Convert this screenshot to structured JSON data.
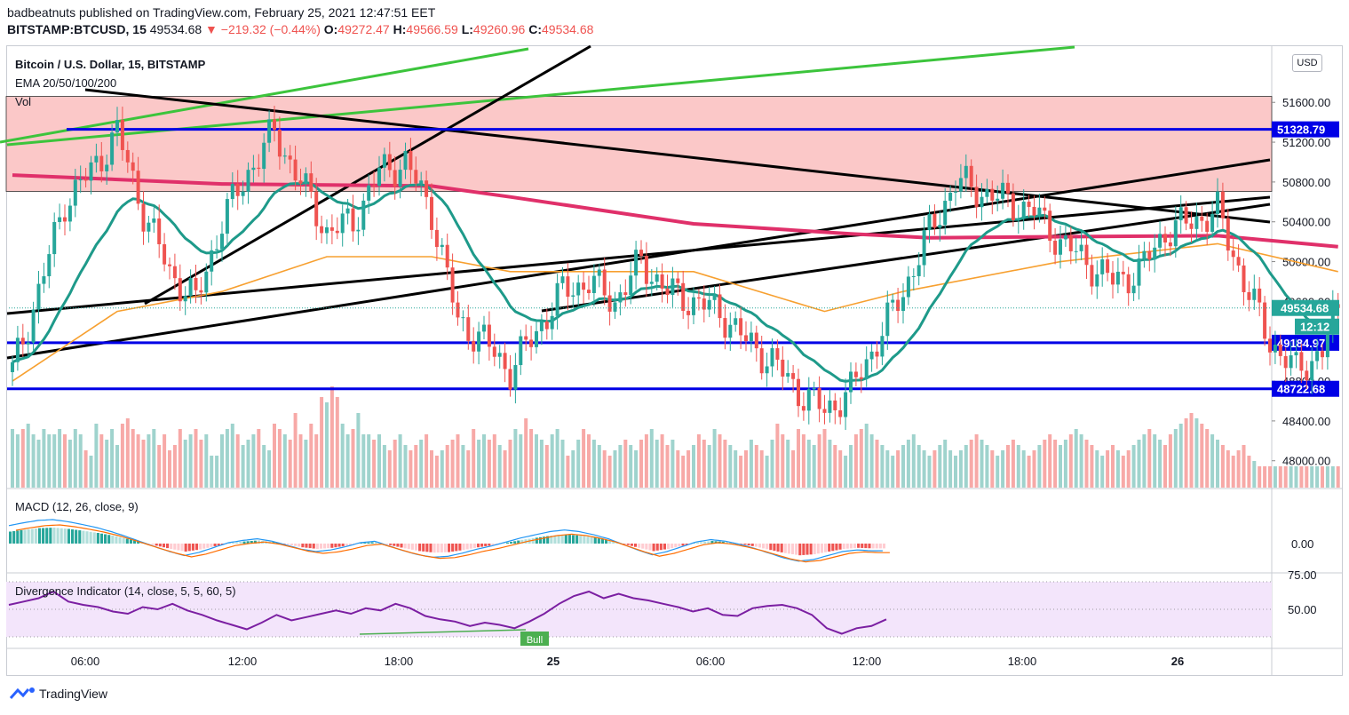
{
  "header": {
    "publisher_line": "badbeatnuts published on TradingView.com, February 25, 2021 12:47:51 EET",
    "symbol": "BITSTAMP:BTCUSD, 15",
    "last": "49534.68",
    "change": "▼ −219.32 (−0.44%)",
    "o_label": "O:",
    "o_val": "49272.47",
    "h_label": "H:",
    "h_val": "49566.59",
    "l_label": "L:",
    "l_val": "49260.96",
    "c_label": "C:",
    "c_val": "49534.68"
  },
  "legend": {
    "title": "Bitcoin / U.S. Dollar, 15, BITSTAMP",
    "ema": "EMA 20/50/100/200",
    "vol": "Vol",
    "macd": "MACD (12, 26, close, 9)",
    "div": "Divergence Indicator (14, close, 5, 5, 60, 5)",
    "currency": "USD"
  },
  "brand": "TradingView",
  "colors": {
    "up": "#26a69a",
    "down": "#ef5350",
    "volUp": "#9fd3cd",
    "volDown": "#f7a9a7",
    "ema20": "#1e9a8a",
    "ema50": "#f7a030",
    "ema200": "#e0306a",
    "zone": "#fbc8c8",
    "hline": "#0000e6",
    "trend": "#000000",
    "green": "#3cc43c",
    "rsi": "#7b1fa2",
    "rsiBg": "#f3e5fb",
    "macd": "#2196f3",
    "signal": "#ff6d00"
  },
  "chart_data": [
    {
      "type": "candlestick",
      "title": "Bitcoin / U.S. Dollar, 15, BITSTAMP",
      "interval_minutes": 15,
      "y_ticks": [
        48000,
        48400,
        48800,
        49200,
        49600,
        50000,
        50400,
        50800,
        51200,
        51600
      ],
      "y_tick_labels": [
        "48000.00",
        "48400.00",
        "48800.00",
        "49200.00",
        "49600.00",
        "50000.00",
        "50400.00",
        "50800.00",
        "51200.00",
        "51600.00"
      ],
      "ylim": [
        47730,
        51950
      ],
      "x_tick_labels": [
        "06:00",
        "12:00",
        "18:00",
        "25",
        "06:00",
        "12:00",
        "18:00",
        "26"
      ],
      "resistance_zone": [
        50705,
        51660
      ],
      "horizontal_levels": [
        51328.79,
        49184.97,
        48722.68
      ],
      "horizontal_level_labels": [
        "51328.79",
        "49184.97",
        "48722.68"
      ],
      "last_price_label": "49534.68",
      "countdown_label": "12:12",
      "close_path": [
        [
          0,
          48900
        ],
        [
          5,
          49700
        ],
        [
          10,
          50600
        ],
        [
          15,
          50900
        ],
        [
          20,
          51300
        ],
        [
          25,
          50500
        ],
        [
          30,
          49900
        ],
        [
          35,
          49600
        ],
        [
          40,
          50400
        ],
        [
          45,
          50900
        ],
        [
          50,
          51300
        ],
        [
          55,
          50800
        ],
        [
          60,
          50300
        ],
        [
          65,
          50400
        ],
        [
          70,
          50900
        ],
        [
          75,
          51000
        ],
        [
          80,
          50500
        ],
        [
          85,
          49400
        ],
        [
          90,
          49200
        ],
        [
          95,
          48900
        ],
        [
          100,
          49300
        ],
        [
          105,
          49700
        ],
        [
          110,
          49800
        ],
        [
          115,
          49600
        ],
        [
          120,
          50000
        ],
        [
          125,
          49700
        ],
        [
          130,
          49600
        ],
        [
          135,
          49500
        ],
        [
          140,
          49200
        ],
        [
          145,
          49000
        ],
        [
          150,
          48700
        ],
        [
          155,
          48500
        ],
        [
          160,
          48700
        ],
        [
          165,
          49200
        ],
        [
          170,
          49700
        ],
        [
          175,
          50300
        ],
        [
          180,
          50800
        ],
        [
          185,
          50700
        ],
        [
          190,
          50600
        ],
        [
          195,
          50500
        ],
        [
          200,
          50200
        ],
        [
          205,
          50000
        ],
        [
          210,
          49800
        ],
        [
          215,
          49900
        ],
        [
          220,
          50300
        ],
        [
          225,
          50400
        ],
        [
          230,
          50500
        ],
        [
          235,
          49800
        ],
        [
          240,
          49200
        ],
        [
          245,
          48900
        ],
        [
          250,
          49100
        ],
        [
          253,
          49534.68
        ]
      ],
      "ema200_path": [
        [
          0,
          50870
        ],
        [
          40,
          50780
        ],
        [
          80,
          50760
        ],
        [
          95,
          50650
        ],
        [
          130,
          50380
        ],
        [
          160,
          50280
        ],
        [
          175,
          50240
        ],
        [
          200,
          50250
        ],
        [
          230,
          50260
        ],
        [
          253,
          50150
        ]
      ],
      "ema50_path": [
        [
          0,
          48800
        ],
        [
          20,
          49500
        ],
        [
          40,
          49700
        ],
        [
          60,
          50050
        ],
        [
          80,
          50050
        ],
        [
          95,
          49900
        ],
        [
          130,
          49900
        ],
        [
          155,
          49500
        ],
        [
          170,
          49700
        ],
        [
          200,
          50000
        ],
        [
          230,
          50180
        ],
        [
          253,
          49900
        ]
      ]
    },
    {
      "type": "bar",
      "title": "Vol",
      "series": [
        {
          "values": [
            0.55,
            0.5,
            0.55,
            0.6,
            0.5,
            0.45,
            0.55,
            0.5,
            0.5,
            0.55,
            0.5,
            0.45,
            0.55,
            0.5,
            0.35,
            0.3,
            0.6,
            0.5,
            0.45,
            0.55,
            0.4,
            0.6,
            0.65,
            0.55,
            0.5,
            0.45,
            0.5,
            0.55,
            0.4,
            0.5,
            0.35,
            0.4,
            0.55,
            0.45,
            0.5,
            0.55,
            0.45,
            0.5,
            0.3,
            0.3,
            0.5,
            0.55,
            0.6,
            0.5,
            0.4,
            0.45,
            0.5,
            0.55,
            0.4,
            0.35,
            0.6,
            0.55,
            0.5,
            0.45,
            0.7,
            0.5,
            0.45,
            0.6,
            0.5,
            0.85,
            0.8,
            0.95,
            0.85,
            0.6,
            0.5,
            0.55,
            0.7,
            0.5,
            0.5,
            0.45,
            0.5,
            0.4,
            0.35,
            0.45,
            0.5,
            0.4,
            0.35,
            0.4,
            0.45,
            0.5,
            0.35,
            0.3,
            0.35,
            0.4,
            0.45,
            0.5,
            0.4,
            0.35,
            0.55,
            0.45,
            0.5,
            0.45,
            0.5,
            0.4,
            0.35,
            0.45,
            0.55,
            0.5,
            0.65,
            0.55,
            0.5,
            0.45,
            0.4,
            0.5,
            0.55,
            0.45,
            0.3,
            0.35,
            0.45,
            0.55,
            0.5,
            0.45,
            0.4,
            0.35,
            0.3,
            0.35,
            0.4,
            0.45,
            0.4,
            0.35,
            0.45,
            0.5,
            0.55,
            0.45,
            0.5,
            0.4,
            0.45,
            0.35,
            0.3,
            0.35,
            0.4,
            0.5,
            0.45,
            0.4,
            0.55,
            0.5,
            0.45,
            0.4,
            0.35,
            0.3,
            0.35,
            0.45,
            0.4,
            0.35,
            0.3,
            0.45,
            0.6,
            0.5,
            0.45,
            0.35,
            0.55,
            0.5,
            0.45,
            0.4,
            0.5,
            0.55,
            0.45,
            0.4,
            0.35,
            0.3,
            0.4,
            0.5,
            0.55,
            0.6,
            0.5,
            0.45,
            0.4,
            0.35,
            0.3,
            0.35,
            0.4,
            0.45,
            0.5,
            0.4,
            0.35,
            0.3,
            0.35,
            0.4,
            0.45,
            0.35,
            0.3,
            0.35,
            0.4,
            0.45,
            0.5,
            0.45,
            0.4,
            0.35,
            0.3,
            0.35,
            0.4,
            0.45,
            0.4,
            0.35,
            0.3,
            0.35,
            0.4,
            0.45,
            0.5,
            0.45,
            0.4,
            0.45,
            0.5,
            0.55,
            0.5,
            0.45,
            0.4,
            0.35,
            0.3,
            0.35,
            0.4,
            0.35,
            0.3,
            0.35,
            0.4,
            0.45,
            0.5,
            0.55,
            0.5,
            0.45,
            0.4,
            0.5,
            0.55,
            0.6,
            0.65,
            0.7,
            0.65,
            0.6,
            0.55,
            0.5,
            0.45,
            0.4,
            0.35,
            0.3,
            0.35,
            0.4,
            0.3,
            0.25,
            0.2
          ]
        }
      ]
    },
    {
      "type": "bar",
      "title": "MACD (12, 26, close, 9)",
      "y_tick_labels": [
        "0.00"
      ],
      "series": [
        {
          "name": "",
          "values": [
            45,
            52,
            58,
            60,
            55,
            48,
            40,
            30,
            18,
            5,
            -8,
            -20,
            -30,
            -22,
            -10,
            2,
            8,
            12,
            6,
            -4,
            -14,
            -20,
            -16,
            -8,
            2,
            6,
            -6,
            -18,
            -28,
            -34,
            -32,
            -24,
            -14,
            -6,
            4,
            14,
            22,
            30,
            34,
            30,
            22,
            12,
            -2,
            -16,
            -28,
            -20,
            -8,
            4,
            10,
            6,
            -2,
            -12,
            -24,
            -36,
            -44,
            -40,
            -30,
            -20,
            -16,
            -18
          ]
        }
      ]
    },
    {
      "type": "line",
      "title": "Divergence Indicator (14, close, 5, 5, 60, 5)",
      "y_tick_labels": [
        "75.00",
        "50.00"
      ],
      "annotations": [
        "Bull"
      ],
      "series": [
        {
          "name": "",
          "values": [
            54,
            57,
            60,
            66,
            57,
            54,
            52,
            48,
            46,
            52,
            50,
            55,
            49,
            45,
            40,
            36,
            32,
            38,
            45,
            40,
            43,
            46,
            49,
            46,
            51,
            49,
            55,
            51,
            44,
            41,
            39,
            35,
            38,
            36,
            33,
            39,
            46,
            55,
            62,
            66,
            60,
            64,
            60,
            58,
            55,
            52,
            48,
            51,
            45,
            44,
            51,
            53,
            54,
            51,
            45,
            33,
            28,
            33,
            35,
            41
          ]
        }
      ]
    }
  ]
}
